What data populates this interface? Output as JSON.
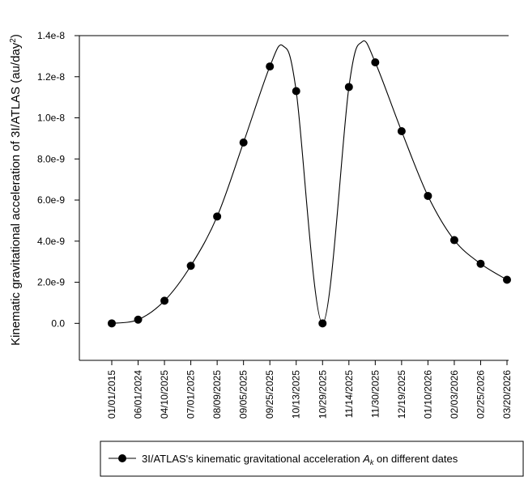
{
  "chart_data": {
    "type": "line",
    "title": "",
    "xlabel": "",
    "ylabel": "Kinematic gravitational acceleration of 3I/ATLAS (au/day²)",
    "y_ticks": [
      "1.4e-8",
      "1.2e-8",
      "1.0e-8",
      "8.0e-9",
      "6.0e-9",
      "4.0e-9",
      "2.0e-9",
      "0.0"
    ],
    "ylim": [
      -1.8e-09,
      1.4e-08
    ],
    "grid": false,
    "x": [
      "01/01/2015",
      "06/01/2024",
      "04/10/2025",
      "07/01/2025",
      "08/09/2025",
      "09/05/2025",
      "09/25/2025",
      "10/13/2025",
      "10/29/2025",
      "11/14/2025",
      "11/30/2025",
      "12/19/2025",
      "01/10/2026",
      "02/03/2026",
      "02/25/2026",
      "03/20/2026"
    ],
    "series": [
      {
        "name": "3I/ATLAS's kinematic gravitational acceleration Ak on different dates",
        "values": [
          0.0,
          1.8e-10,
          1.1e-09,
          2.8e-09,
          5.2e-09,
          8.8e-09,
          1.25e-08,
          1.13e-08,
          0.0,
          1.15e-08,
          1.27e-08,
          9.35e-09,
          6.2e-09,
          4.05e-09,
          2.9e-09,
          2.12e-09
        ]
      }
    ],
    "curve_peaks": [
      {
        "between": [
          "09/25/2025",
          "10/13/2025"
        ],
        "value": 1.35e-08
      },
      {
        "between": [
          "11/14/2025",
          "11/30/2025"
        ],
        "value": 1.37e-08
      }
    ],
    "legend": {
      "placement": "bottom",
      "label_prefix": "3I/ATLAS's kinematic gravitational acceleration ",
      "label_symbol": "A",
      "label_subscript": "k",
      "label_suffix": " on different dates"
    },
    "colors": {
      "line": "#000000",
      "marker": "#000000",
      "axis": "#000000"
    }
  }
}
